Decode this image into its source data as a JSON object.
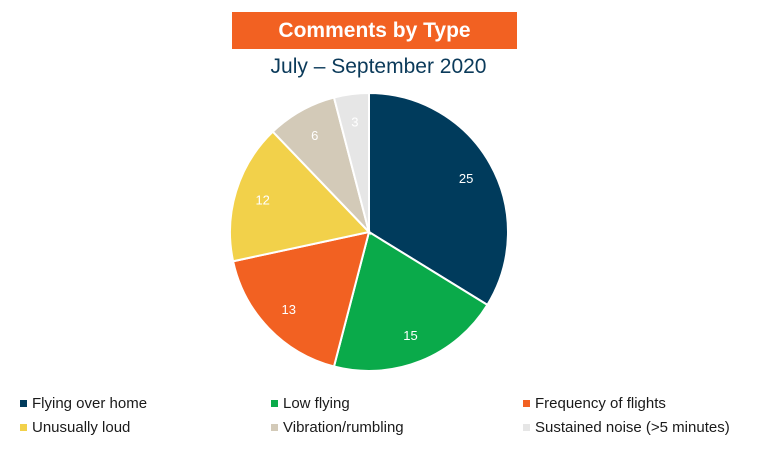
{
  "chart_data": {
    "type": "pie",
    "title": "Comments by Type",
    "subtitle": "July – September 2020",
    "slices": [
      {
        "label": "Flying over home",
        "value": 25,
        "color": "#003b5c"
      },
      {
        "label": "Low flying",
        "value": 15,
        "color": "#0aaa4a"
      },
      {
        "label": "Frequency of flights",
        "value": 13,
        "color": "#f26122"
      },
      {
        "label": "Unusually loud",
        "value": 12,
        "color": "#f2d14a"
      },
      {
        "label": "Vibration/rumbling",
        "value": 6,
        "color": "#d3cab8"
      },
      {
        "label": "Sustained noise (>5 minutes)",
        "value": 3,
        "color": "#e6e6e6"
      }
    ],
    "legend_position": "bottom",
    "data_labels": true
  }
}
